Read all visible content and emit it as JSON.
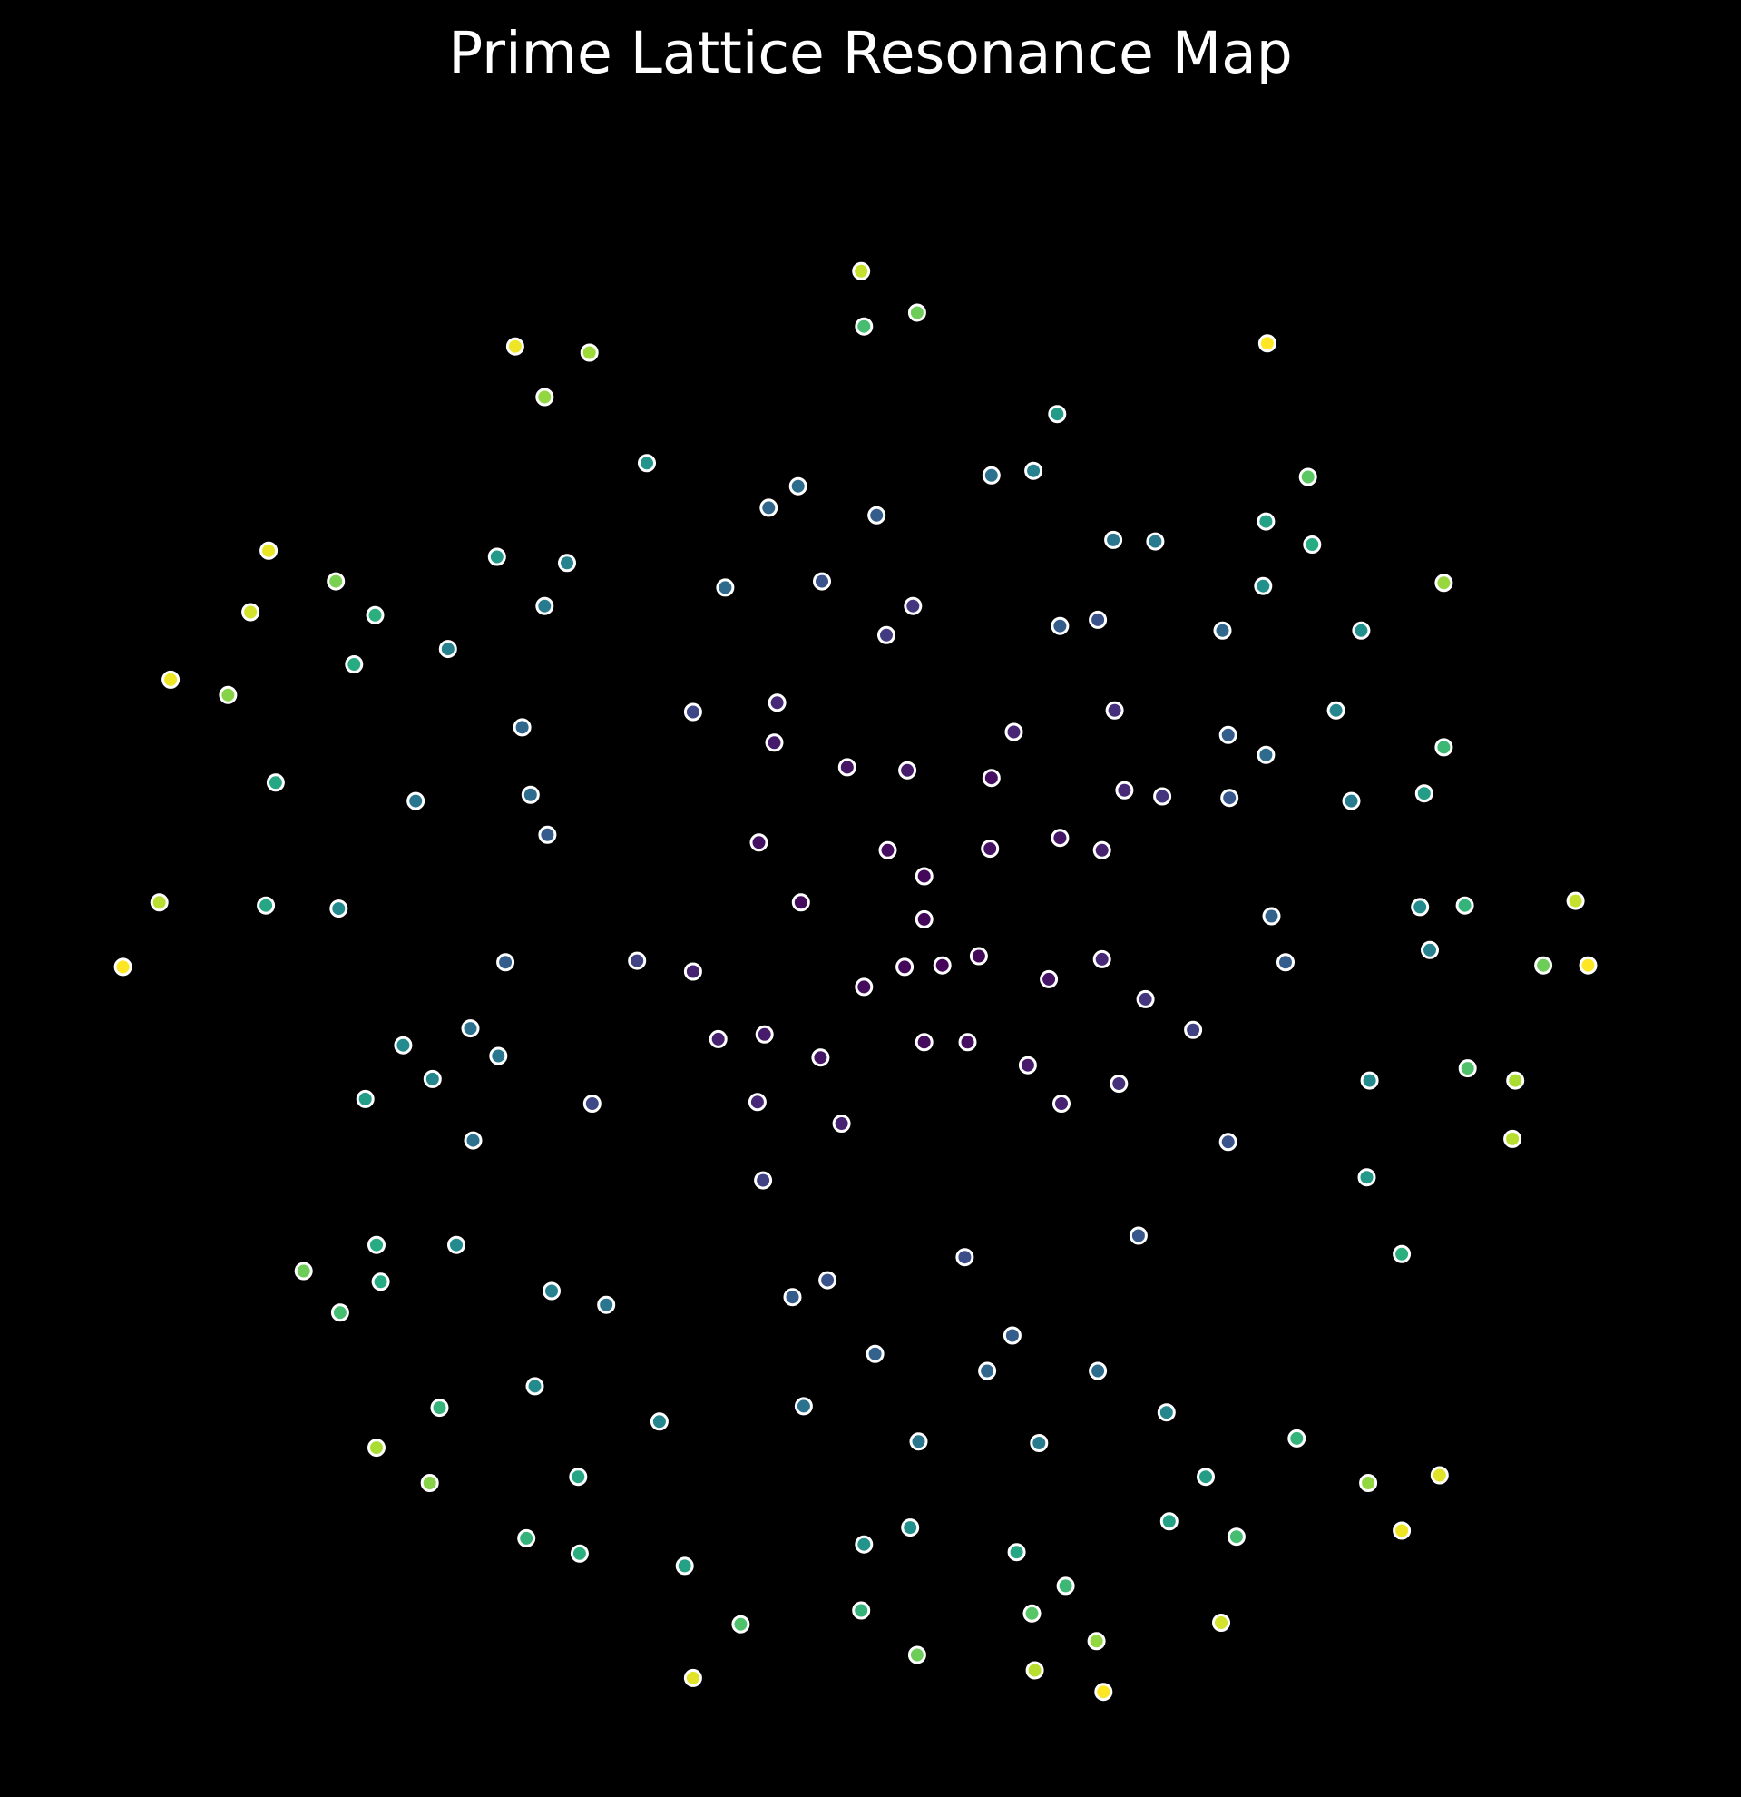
{
  "chart_data": {
    "type": "scatter",
    "title": "Prime Lattice Resonance Map",
    "xlabel": "",
    "ylabel": "",
    "axes_visible": false,
    "grid": false,
    "legend": "none",
    "xlim": [
      -5.7,
      5.7
    ],
    "ylim": [
      -5.2,
      5.2
    ],
    "background": "#000000",
    "marker_edge_color": "#ffffff",
    "colormap": "viridis",
    "color_value_range": [
      0,
      1
    ],
    "points": [
      {
        "x": -0.07,
        "y": 4.38,
        "c": 0.92
      },
      {
        "x": -0.05,
        "y": 4.02,
        "c": 0.7
      },
      {
        "x": 0.33,
        "y": 4.11,
        "c": 0.78
      },
      {
        "x": 2.83,
        "y": 3.91,
        "c": 1.0
      },
      {
        "x": -2.54,
        "y": 3.89,
        "c": 0.98
      },
      {
        "x": -2.01,
        "y": 3.85,
        "c": 0.86
      },
      {
        "x": -2.33,
        "y": 3.56,
        "c": 0.84
      },
      {
        "x": 1.33,
        "y": 3.45,
        "c": 0.55
      },
      {
        "x": -1.6,
        "y": 3.13,
        "c": 0.52
      },
      {
        "x": 0.86,
        "y": 3.05,
        "c": 0.38
      },
      {
        "x": 1.16,
        "y": 3.08,
        "c": 0.44
      },
      {
        "x": 3.12,
        "y": 3.04,
        "c": 0.75
      },
      {
        "x": -0.52,
        "y": 2.98,
        "c": 0.36
      },
      {
        "x": -0.73,
        "y": 2.84,
        "c": 0.34
      },
      {
        "x": 0.04,
        "y": 2.79,
        "c": 0.3
      },
      {
        "x": 2.82,
        "y": 2.75,
        "c": 0.58
      },
      {
        "x": 3.15,
        "y": 2.6,
        "c": 0.62
      },
      {
        "x": 1.73,
        "y": 2.63,
        "c": 0.4
      },
      {
        "x": 2.03,
        "y": 2.62,
        "c": 0.42
      },
      {
        "x": -4.3,
        "y": 2.56,
        "c": 0.97
      },
      {
        "x": -3.82,
        "y": 2.36,
        "c": 0.8
      },
      {
        "x": -2.67,
        "y": 2.52,
        "c": 0.54
      },
      {
        "x": -2.17,
        "y": 2.48,
        "c": 0.45
      },
      {
        "x": 2.8,
        "y": 2.33,
        "c": 0.5
      },
      {
        "x": 4.09,
        "y": 2.35,
        "c": 0.85
      },
      {
        "x": -1.04,
        "y": 2.32,
        "c": 0.35
      },
      {
        "x": -0.35,
        "y": 2.36,
        "c": 0.26
      },
      {
        "x": -4.43,
        "y": 2.16,
        "c": 0.94
      },
      {
        "x": -3.54,
        "y": 2.14,
        "c": 0.64
      },
      {
        "x": -2.33,
        "y": 2.2,
        "c": 0.42
      },
      {
        "x": 0.3,
        "y": 2.2,
        "c": 0.16
      },
      {
        "x": 0.11,
        "y": 2.01,
        "c": 0.18
      },
      {
        "x": 1.35,
        "y": 2.07,
        "c": 0.3
      },
      {
        "x": 1.62,
        "y": 2.11,
        "c": 0.26
      },
      {
        "x": 2.51,
        "y": 2.04,
        "c": 0.34
      },
      {
        "x": 3.5,
        "y": 2.04,
        "c": 0.5
      },
      {
        "x": -3.69,
        "y": 1.82,
        "c": 0.62
      },
      {
        "x": -3.02,
        "y": 1.92,
        "c": 0.44
      },
      {
        "x": -1.27,
        "y": 1.51,
        "c": 0.22
      },
      {
        "x": -0.67,
        "y": 1.57,
        "c": 0.12
      },
      {
        "x": 1.74,
        "y": 1.52,
        "c": 0.14
      },
      {
        "x": 3.32,
        "y": 1.52,
        "c": 0.46
      },
      {
        "x": -5.0,
        "y": 1.72,
        "c": 0.98
      },
      {
        "x": -4.59,
        "y": 1.62,
        "c": 0.82
      },
      {
        "x": -2.49,
        "y": 1.41,
        "c": 0.34
      },
      {
        "x": -0.69,
        "y": 1.31,
        "c": 0.08
      },
      {
        "x": 1.02,
        "y": 1.38,
        "c": 0.11
      },
      {
        "x": 2.55,
        "y": 1.36,
        "c": 0.3
      },
      {
        "x": 2.82,
        "y": 1.23,
        "c": 0.36
      },
      {
        "x": 4.09,
        "y": 1.28,
        "c": 0.68
      },
      {
        "x": -0.17,
        "y": 1.15,
        "c": 0.06
      },
      {
        "x": 0.26,
        "y": 1.13,
        "c": 0.08
      },
      {
        "x": 0.86,
        "y": 1.08,
        "c": 0.04
      },
      {
        "x": 1.81,
        "y": 1.0,
        "c": 0.12
      },
      {
        "x": 2.08,
        "y": 0.96,
        "c": 0.16
      },
      {
        "x": 3.95,
        "y": 0.98,
        "c": 0.56
      },
      {
        "x": -4.25,
        "y": 1.05,
        "c": 0.6
      },
      {
        "x": -3.25,
        "y": 0.93,
        "c": 0.4
      },
      {
        "x": -2.43,
        "y": 0.97,
        "c": 0.36
      },
      {
        "x": 2.56,
        "y": 0.95,
        "c": 0.28
      },
      {
        "x": 3.43,
        "y": 0.93,
        "c": 0.42
      },
      {
        "x": -2.31,
        "y": 0.71,
        "c": 0.3
      },
      {
        "x": -0.8,
        "y": 0.66,
        "c": 0.05
      },
      {
        "x": 0.12,
        "y": 0.61,
        "c": 0.04
      },
      {
        "x": 0.85,
        "y": 0.62,
        "c": 0.05
      },
      {
        "x": 1.35,
        "y": 0.69,
        "c": 0.06
      },
      {
        "x": 1.65,
        "y": 0.61,
        "c": 0.1
      },
      {
        "x": 0.38,
        "y": 0.44,
        "c": 0.02
      },
      {
        "x": -0.5,
        "y": 0.27,
        "c": 0.03
      },
      {
        "x": -5.08,
        "y": 0.27,
        "c": 0.9
      },
      {
        "x": -4.32,
        "y": 0.25,
        "c": 0.6
      },
      {
        "x": -3.8,
        "y": 0.23,
        "c": 0.48
      },
      {
        "x": 2.86,
        "y": 0.18,
        "c": 0.32
      },
      {
        "x": 3.92,
        "y": 0.24,
        "c": 0.48
      },
      {
        "x": 4.24,
        "y": 0.25,
        "c": 0.66
      },
      {
        "x": 5.03,
        "y": 0.28,
        "c": 0.92
      },
      {
        "x": -2.61,
        "y": -0.12,
        "c": 0.3
      },
      {
        "x": -1.67,
        "y": -0.11,
        "c": 0.2
      },
      {
        "x": 0.38,
        "y": 0.16,
        "c": 0.02
      },
      {
        "x": 1.65,
        "y": -0.1,
        "c": 0.12
      },
      {
        "x": 2.96,
        "y": -0.12,
        "c": 0.3
      },
      {
        "x": 3.99,
        "y": -0.04,
        "c": 0.44
      },
      {
        "x": -1.27,
        "y": -0.18,
        "c": 0.1
      },
      {
        "x": -0.05,
        "y": -0.28,
        "c": 0.03
      },
      {
        "x": 0.24,
        "y": -0.15,
        "c": 0.02
      },
      {
        "x": 0.51,
        "y": -0.14,
        "c": 0.01
      },
      {
        "x": 0.77,
        "y": -0.08,
        "c": 0.02
      },
      {
        "x": 1.27,
        "y": -0.23,
        "c": 0.06
      },
      {
        "x": 4.8,
        "y": -0.14,
        "c": 0.78
      },
      {
        "x": 5.12,
        "y": -0.14,
        "c": 1.0
      },
      {
        "x": -5.34,
        "y": -0.15,
        "c": 1.0
      },
      {
        "x": 1.96,
        "y": -0.36,
        "c": 0.16
      },
      {
        "x": 2.3,
        "y": -0.56,
        "c": 0.2
      },
      {
        "x": -2.86,
        "y": -0.55,
        "c": 0.38
      },
      {
        "x": -3.34,
        "y": -0.66,
        "c": 0.48
      },
      {
        "x": -2.66,
        "y": -0.73,
        "c": 0.4
      },
      {
        "x": -1.09,
        "y": -0.62,
        "c": 0.1
      },
      {
        "x": -0.76,
        "y": -0.59,
        "c": 0.08
      },
      {
        "x": 0.38,
        "y": -0.64,
        "c": 0.03
      },
      {
        "x": 0.69,
        "y": -0.64,
        "c": 0.04
      },
      {
        "x": -0.36,
        "y": -0.74,
        "c": 0.06
      },
      {
        "x": 1.12,
        "y": -0.79,
        "c": 0.08
      },
      {
        "x": 1.77,
        "y": -0.91,
        "c": 0.14
      },
      {
        "x": -3.13,
        "y": -0.88,
        "c": 0.46
      },
      {
        "x": -3.61,
        "y": -1.01,
        "c": 0.56
      },
      {
        "x": -1.99,
        "y": -1.04,
        "c": 0.22
      },
      {
        "x": -0.81,
        "y": -1.03,
        "c": 0.12
      },
      {
        "x": 1.36,
        "y": -1.04,
        "c": 0.1
      },
      {
        "x": 3.56,
        "y": -0.89,
        "c": 0.48
      },
      {
        "x": 4.26,
        "y": -0.81,
        "c": 0.72
      },
      {
        "x": 4.6,
        "y": -0.89,
        "c": 0.88
      },
      {
        "x": -0.21,
        "y": -1.17,
        "c": 0.1
      },
      {
        "x": -2.84,
        "y": -1.28,
        "c": 0.38
      },
      {
        "x": 2.55,
        "y": -1.29,
        "c": 0.26
      },
      {
        "x": 4.58,
        "y": -1.27,
        "c": 0.9
      },
      {
        "x": -0.77,
        "y": -1.54,
        "c": 0.2
      },
      {
        "x": 3.54,
        "y": -1.52,
        "c": 0.54
      },
      {
        "x": -3.53,
        "y": -1.96,
        "c": 0.62
      },
      {
        "x": -2.96,
        "y": -1.96,
        "c": 0.48
      },
      {
        "x": 0.67,
        "y": -2.04,
        "c": 0.24
      },
      {
        "x": 1.91,
        "y": -1.9,
        "c": 0.28
      },
      {
        "x": 3.79,
        "y": -2.02,
        "c": 0.64
      },
      {
        "x": -4.05,
        "y": -2.13,
        "c": 0.78
      },
      {
        "x": -3.5,
        "y": -2.2,
        "c": 0.62
      },
      {
        "x": -2.28,
        "y": -2.26,
        "c": 0.44
      },
      {
        "x": -1.89,
        "y": -2.35,
        "c": 0.4
      },
      {
        "x": -0.56,
        "y": -2.3,
        "c": 0.3
      },
      {
        "x": -0.31,
        "y": -2.19,
        "c": 0.26
      },
      {
        "x": -3.79,
        "y": -2.4,
        "c": 0.7
      },
      {
        "x": 1.01,
        "y": -2.55,
        "c": 0.3
      },
      {
        "x": 0.03,
        "y": -2.67,
        "c": 0.32
      },
      {
        "x": 0.83,
        "y": -2.78,
        "c": 0.34
      },
      {
        "x": 1.62,
        "y": -2.78,
        "c": 0.36
      },
      {
        "x": -2.4,
        "y": -2.88,
        "c": 0.48
      },
      {
        "x": -3.08,
        "y": -3.02,
        "c": 0.66
      },
      {
        "x": -1.51,
        "y": -3.11,
        "c": 0.46
      },
      {
        "x": -0.48,
        "y": -3.01,
        "c": 0.38
      },
      {
        "x": 2.11,
        "y": -3.05,
        "c": 0.46
      },
      {
        "x": -3.53,
        "y": -3.28,
        "c": 0.88
      },
      {
        "x": 0.34,
        "y": -3.24,
        "c": 0.4
      },
      {
        "x": 1.2,
        "y": -3.25,
        "c": 0.42
      },
      {
        "x": 3.04,
        "y": -3.22,
        "c": 0.66
      },
      {
        "x": -3.15,
        "y": -3.51,
        "c": 0.82
      },
      {
        "x": -2.09,
        "y": -3.47,
        "c": 0.6
      },
      {
        "x": 2.39,
        "y": -3.47,
        "c": 0.56
      },
      {
        "x": 3.55,
        "y": -3.51,
        "c": 0.84
      },
      {
        "x": 4.06,
        "y": -3.46,
        "c": 0.96
      },
      {
        "x": 2.13,
        "y": -3.76,
        "c": 0.58
      },
      {
        "x": 2.61,
        "y": -3.86,
        "c": 0.7
      },
      {
        "x": 3.79,
        "y": -3.82,
        "c": 0.98
      },
      {
        "x": -2.46,
        "y": -3.87,
        "c": 0.66
      },
      {
        "x": -2.08,
        "y": -3.97,
        "c": 0.64
      },
      {
        "x": -1.33,
        "y": -4.05,
        "c": 0.58
      },
      {
        "x": -0.05,
        "y": -3.91,
        "c": 0.52
      },
      {
        "x": 0.28,
        "y": -3.8,
        "c": 0.5
      },
      {
        "x": 1.04,
        "y": -3.96,
        "c": 0.6
      },
      {
        "x": 1.39,
        "y": -4.18,
        "c": 0.68
      },
      {
        "x": -0.93,
        "y": -4.43,
        "c": 0.72
      },
      {
        "x": -0.07,
        "y": -4.34,
        "c": 0.66
      },
      {
        "x": 1.15,
        "y": -4.36,
        "c": 0.74
      },
      {
        "x": 1.61,
        "y": -4.54,
        "c": 0.84
      },
      {
        "x": 2.5,
        "y": -4.42,
        "c": 0.94
      },
      {
        "x": 0.33,
        "y": -4.63,
        "c": 0.78
      },
      {
        "x": 1.17,
        "y": -4.73,
        "c": 0.9
      },
      {
        "x": -1.27,
        "y": -4.78,
        "c": 0.96
      },
      {
        "x": 1.66,
        "y": -4.87,
        "c": 1.0
      }
    ]
  }
}
